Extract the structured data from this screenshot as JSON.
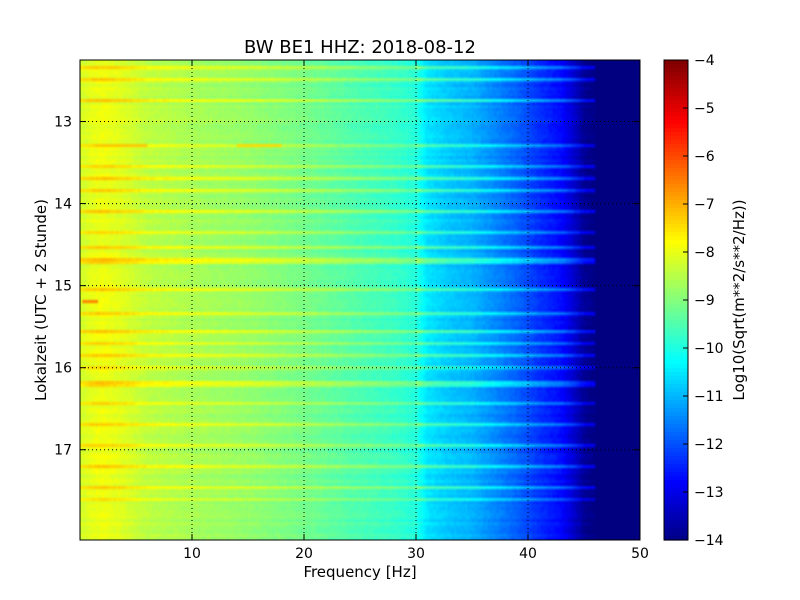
{
  "chart_data": {
    "type": "heatmap",
    "title": "BW BE1 HHZ: 2018-08-12",
    "xlabel": "Frequency [Hz]",
    "ylabel": "Lokalzeit (UTC + 2 Stunde)",
    "xlim": [
      0,
      50
    ],
    "ylim": [
      12.25,
      18.1
    ],
    "y_inverted": true,
    "x_ticks": [
      10,
      20,
      30,
      40,
      50
    ],
    "x_tick_labels": [
      "10",
      "20",
      "30",
      "40",
      "50"
    ],
    "y_ticks": [
      13,
      14,
      15,
      16,
      17
    ],
    "y_tick_labels": [
      "13",
      "14",
      "15",
      "16",
      "17"
    ],
    "grid": true,
    "colormap": "jet",
    "colorbar": {
      "label": "Log10(Sqrt(m**2/s**2/Hz))",
      "vmin": -14,
      "vmax": -4,
      "ticks": [
        -4,
        -5,
        -6,
        -7,
        -8,
        -9,
        -10,
        -11,
        -12,
        -13,
        -14
      ],
      "tick_labels": [
        "−4",
        "−5",
        "−6",
        "−7",
        "−8",
        "−9",
        "−10",
        "−11",
        "−12",
        "−13",
        "−14"
      ]
    },
    "spectrum_profile": {
      "frequency_hz": [
        0,
        1,
        2,
        4,
        6,
        10,
        15,
        20,
        25,
        28,
        30,
        31,
        33,
        35,
        37,
        39,
        41,
        43,
        44,
        45,
        46,
        50
      ],
      "log10_value": [
        -8.2,
        -8.0,
        -7.9,
        -8.1,
        -8.4,
        -8.6,
        -8.8,
        -9.1,
        -9.5,
        -9.7,
        -9.9,
        -10.5,
        -10.8,
        -11.0,
        -11.4,
        -11.8,
        -12.3,
        -12.7,
        -13.2,
        -13.8,
        -14,
        -14
      ]
    },
    "bright_bands_hour": [
      12.35,
      12.5,
      12.75,
      13.3,
      13.55,
      13.68,
      13.85,
      14.1,
      14.35,
      14.55,
      14.7,
      15.05,
      15.35,
      15.55,
      15.7,
      15.85,
      16.0,
      16.2,
      16.45,
      16.7,
      16.95,
      17.2,
      17.45,
      17.6
    ],
    "hot_spots": [
      {
        "hour": 13.3,
        "freq_from": 1.5,
        "freq_to": 6,
        "value": -7.2
      },
      {
        "hour": 13.3,
        "freq_from": 14,
        "freq_to": 18,
        "value": -7.4
      },
      {
        "hour": 15.2,
        "freq_from": 0.3,
        "freq_to": 1.5,
        "value": -6.5
      }
    ]
  }
}
